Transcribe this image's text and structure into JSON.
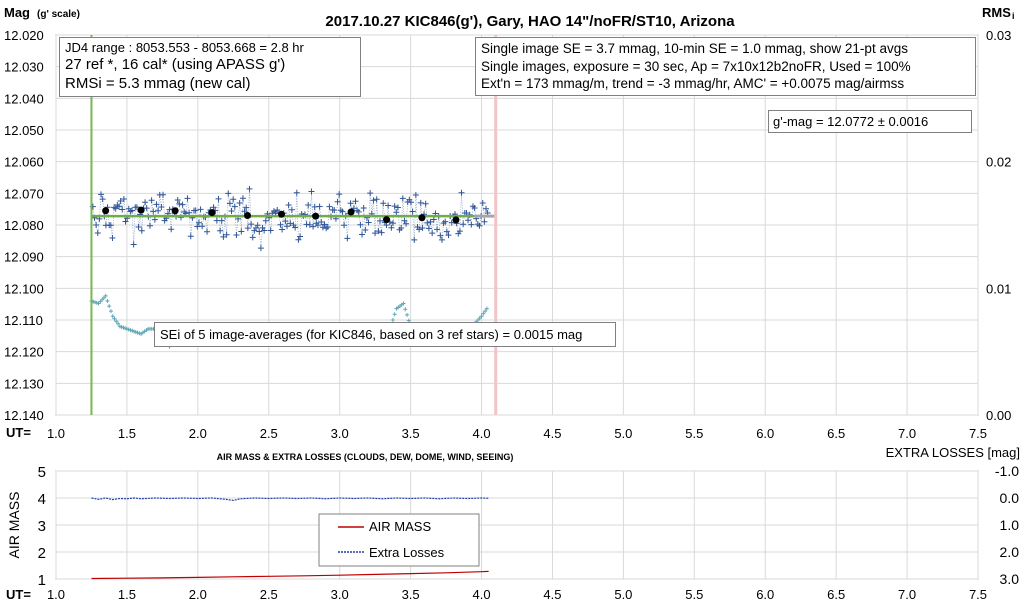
{
  "colors": {
    "ref_line": "#77b755",
    "cut_line": "#f4c4c4",
    "data_points": "#2f5597",
    "avg_points": "#000000",
    "fit_line": "#70ad47",
    "rms_points": "#5fa7b5",
    "air_mass": "#c00000",
    "extra_losses": "#1f3fa8",
    "grid": "#d9d9d9"
  },
  "header": {
    "title": "2017.10.27  KIC846(g'),  Gary, HAO 14\"/noFR/ST10,  Arizona",
    "ylabel_left": "Mag",
    "ylabel_left_sub": "(g' scale)",
    "ylabel_right": "RMS",
    "ylabel_right_sub": "i",
    "ut_label": "UT="
  },
  "info_left": {
    "line1": "JD4 range : 8053.553 - 8053.668 =  2.8  hr",
    "line2": "27 ref *, 16 cal* (using APASS g')",
    "line3": "RMSi = 5.3 mmag (new cal)"
  },
  "info_right": {
    "line1": "Single image SE = 3.7 mmag, 10-min SE = 1.0 mmag, show  21-pt avgs",
    "line2": "Single images, exposure = 30 sec, Ap = 7x10x12b2noFR,  Used = 100%",
    "line3": "Ext'n = 173 mmag/m, trend =  -3 mmag/hr, AMC' = +0.0075 mag/airmss"
  },
  "gmag_box": "g'-mag = 12.0772 ± 0.0016",
  "sei_box": "SEi of 5 image-averages (for KIC846, based on 3 ref stars) = 0.0015  mag",
  "lower": {
    "title": "AIR MASS & EXTRA LOSSES (CLOUDS, DEW, DOME, WIND, SEEING)",
    "ylabel_left": "AIR MASS",
    "ylabel_right": "EXTRA LOSSES [mag]",
    "ut_label": "UT=",
    "legend": [
      "AIR MASS",
      "Extra Losses"
    ]
  },
  "chart_data": [
    {
      "type": "scatter",
      "title": "2017.10.27  KIC846(g'),  Gary, HAO 14\"/noFR/ST10,  Arizona",
      "xlim": [
        1.0,
        7.5
      ],
      "x_ticks": [
        "1.0",
        "1.5",
        "2.0",
        "2.5",
        "3.0",
        "3.5",
        "4.0",
        "4.5",
        "5.0",
        "5.5",
        "6.0",
        "6.5",
        "7.0",
        "7.5"
      ],
      "ylim": [
        12.02,
        12.14
      ],
      "y_inverted": true,
      "y_ticks": [
        "12.020",
        "12.030",
        "12.040",
        "12.050",
        "12.060",
        "12.070",
        "12.080",
        "12.090",
        "12.100",
        "12.110",
        "12.120",
        "12.130",
        "12.140"
      ],
      "y2lim": [
        0.0,
        0.03
      ],
      "y2_ticks": [
        "0.00",
        "0.01",
        "0.02",
        "0.03"
      ],
      "grid": true,
      "data_start": 1.25,
      "data_end": 4.05,
      "ref_line_x": 1.25,
      "cut_line_x": 4.1,
      "fit_mag": 12.0772,
      "averages": {
        "x": [
          1.35,
          1.6,
          1.84,
          2.1,
          2.35,
          2.59,
          2.83,
          3.08,
          3.33,
          3.58,
          3.82
        ],
        "y": [
          12.0755,
          12.0753,
          12.0755,
          12.0761,
          12.077,
          12.0766,
          12.0772,
          12.0759,
          12.0783,
          12.0777,
          12.0784
        ]
      },
      "rms_envelope": {
        "x": [
          1.25,
          1.3,
          1.35,
          1.4,
          1.45,
          1.5,
          1.55,
          1.6,
          1.65,
          1.7,
          1.75,
          1.8,
          1.85,
          1.9,
          1.95,
          2.0,
          2.05,
          2.1,
          2.15,
          2.2,
          2.25,
          2.3,
          2.35,
          2.4,
          2.45,
          2.5,
          2.55,
          2.6,
          2.65,
          2.7,
          2.75,
          2.8,
          2.85,
          2.9,
          2.95,
          3.0,
          3.05,
          3.1,
          3.15,
          3.2,
          3.25,
          3.3,
          3.35,
          3.4,
          3.45,
          3.5,
          3.55,
          3.6,
          3.65,
          3.7,
          3.75,
          3.8,
          3.85,
          3.9,
          3.95,
          4.0,
          4.05
        ],
        "y": [
          0.009,
          0.0088,
          0.0094,
          0.0078,
          0.007,
          0.0068,
          0.0066,
          0.0064,
          0.0068,
          0.0068,
          0.006,
          0.0054,
          0.0062,
          0.007,
          0.0066,
          0.0058,
          0.0062,
          0.0064,
          0.0062,
          0.0066,
          0.0068,
          0.0064,
          0.006,
          0.0058,
          0.0064,
          0.0062,
          0.0058,
          0.006,
          0.0064,
          0.0062,
          0.0066,
          0.0064,
          0.006,
          0.0058,
          0.0064,
          0.0068,
          0.007,
          0.0066,
          0.0064,
          0.007,
          0.0068,
          0.0066,
          0.0066,
          0.0084,
          0.0088,
          0.007,
          0.0066,
          0.0064,
          0.0062,
          0.006,
          0.0056,
          0.0068,
          0.0064,
          0.0058,
          0.0072,
          0.0078,
          0.0086
        ]
      }
    },
    {
      "type": "line",
      "title": "AIR MASS & EXTRA LOSSES (CLOUDS, DEW, DOME, WIND, SEEING)",
      "xlim": [
        1.0,
        7.5
      ],
      "x_ticks": [
        "1.0",
        "1.5",
        "2.0",
        "2.5",
        "3.0",
        "3.5",
        "4.0",
        "4.5",
        "5.0",
        "5.5",
        "6.0",
        "6.5",
        "7.0",
        "7.5"
      ],
      "ylim": [
        1,
        5
      ],
      "y_ticks": [
        "1",
        "2",
        "3",
        "4",
        "5"
      ],
      "y2lim": [
        3.0,
        -1.0
      ],
      "y2_ticks": [
        "-1.0",
        "0.0",
        "1.0",
        "2.0",
        "3.0"
      ],
      "legend_position": "center",
      "series": [
        {
          "name": "AIR MASS",
          "x": [
            1.25,
            1.5,
            1.75,
            2.0,
            2.25,
            2.5,
            2.75,
            3.0,
            3.25,
            3.5,
            3.75,
            4.0,
            4.05
          ],
          "y": [
            1.02,
            1.03,
            1.04,
            1.06,
            1.08,
            1.1,
            1.12,
            1.14,
            1.17,
            1.2,
            1.23,
            1.27,
            1.28
          ]
        },
        {
          "name": "Extra Losses",
          "x": [
            1.25,
            1.3,
            1.35,
            1.4,
            1.45,
            1.5,
            1.55,
            1.6,
            1.7,
            1.8,
            1.9,
            2.0,
            2.1,
            2.2,
            2.25,
            2.3,
            2.4,
            2.5,
            2.6,
            2.7,
            2.8,
            2.9,
            3.0,
            3.1,
            3.2,
            3.3,
            3.4,
            3.5,
            3.6,
            3.7,
            3.8,
            3.9,
            4.0,
            4.05
          ],
          "y": [
            0.0,
            0.05,
            0.0,
            0.06,
            0.02,
            0.03,
            0.0,
            0.03,
            0.0,
            0.02,
            0.0,
            0.02,
            0.0,
            0.05,
            0.09,
            0.03,
            0.0,
            0.02,
            0.0,
            0.02,
            0.0,
            0.03,
            0.0,
            0.02,
            0.0,
            0.03,
            0.0,
            0.02,
            0.0,
            0.03,
            0.0,
            0.02,
            0.0,
            0.01
          ]
        }
      ]
    }
  ]
}
